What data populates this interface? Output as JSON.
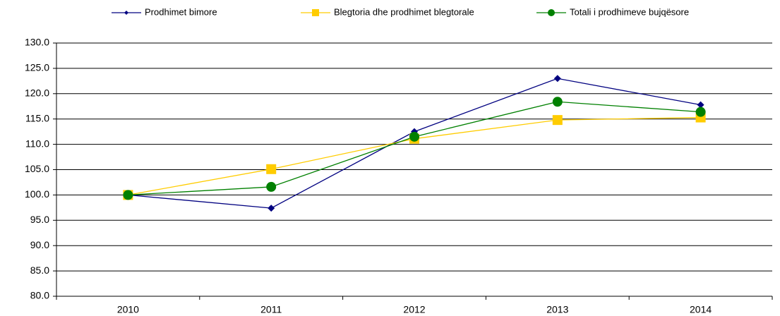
{
  "chart_data": {
    "type": "line",
    "categories": [
      "2010",
      "2011",
      "2012",
      "2013",
      "2014"
    ],
    "series": [
      {
        "name": "Prodhimet bimore",
        "color": "#000080",
        "marker": "diamond",
        "values": [
          100.0,
          97.4,
          112.5,
          123.0,
          117.8
        ]
      },
      {
        "name": "Blegtoria dhe prodhimet blegtorale",
        "color": "#FFCC00",
        "marker": "square",
        "values": [
          100.0,
          105.1,
          111.1,
          114.8,
          115.3
        ]
      },
      {
        "name": "Totali i prodhimeve bujqësore",
        "color": "#008000",
        "marker": "circle",
        "values": [
          100.0,
          101.6,
          111.5,
          118.4,
          116.4
        ]
      }
    ],
    "ylim": [
      80,
      130
    ],
    "yticks": [
      {
        "value": 80,
        "label": "80.0"
      },
      {
        "value": 85,
        "label": "85.0"
      },
      {
        "value": 90,
        "label": "90.0"
      },
      {
        "value": 95,
        "label": "95.0"
      },
      {
        "value": 100,
        "label": "100.0"
      },
      {
        "value": 105,
        "label": "105.0"
      },
      {
        "value": 110,
        "label": "110.0"
      },
      {
        "value": 115,
        "label": "115.0"
      },
      {
        "value": 120,
        "label": "120.0"
      },
      {
        "value": 125,
        "label": "125.0"
      },
      {
        "value": 130,
        "label": "130.0"
      }
    ],
    "grid": true,
    "legend": "top"
  }
}
